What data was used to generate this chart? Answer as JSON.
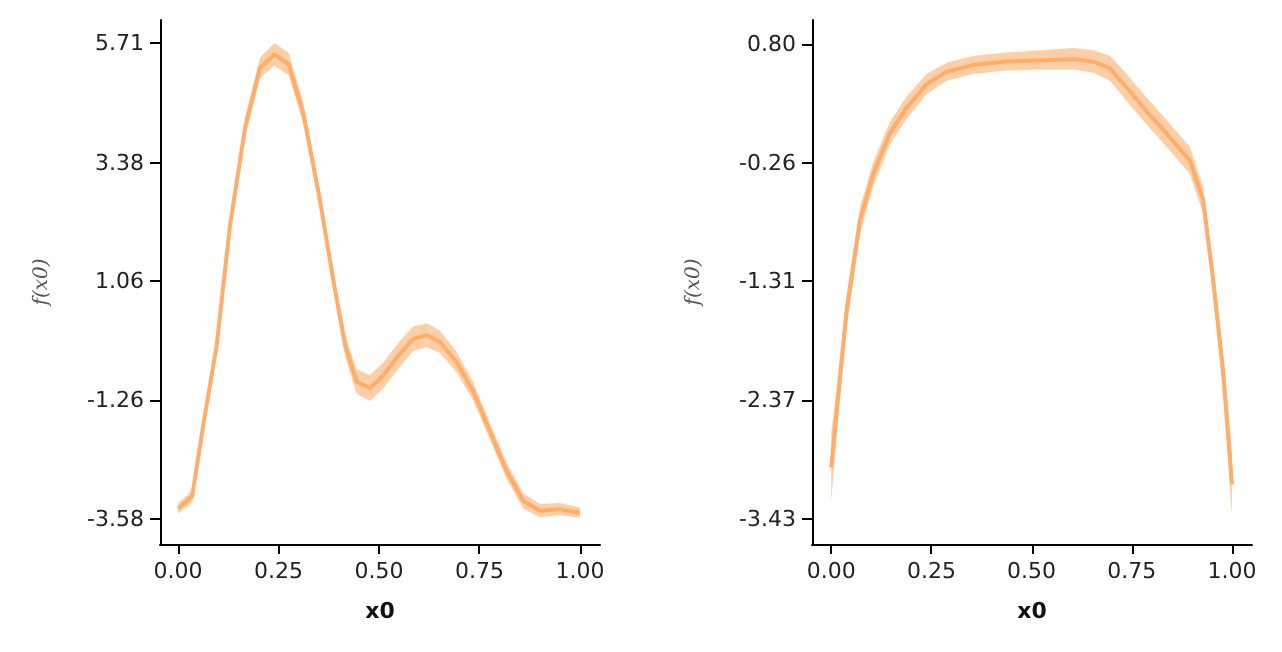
{
  "chart_data": [
    {
      "type": "line",
      "xlabel": "x0",
      "ylabel": "f(x0)",
      "x": [
        0,
        0.035,
        0.063,
        0.096,
        0.129,
        0.167,
        0.204,
        0.24,
        0.275,
        0.312,
        0.353,
        0.386,
        0.416,
        0.444,
        0.478,
        0.511,
        0.549,
        0.585,
        0.619,
        0.652,
        0.693,
        0.735,
        0.776,
        0.818,
        0.859,
        0.9,
        0.95,
        1.0
      ],
      "series": [
        {
          "color": "#fdae6b",
          "values": [
            -3.37,
            -3.13,
            -1.73,
            -0.19,
            2.14,
            4.07,
            5.23,
            5.49,
            5.3,
            4.33,
            2.65,
            1.1,
            -0.19,
            -0.89,
            -1.02,
            -0.77,
            -0.38,
            -0.06,
            0.01,
            -0.12,
            -0.51,
            -1.09,
            -1.86,
            -2.64,
            -3.22,
            -3.41,
            -3.38,
            -3.45
          ],
          "lower": [
            -3.47,
            -3.25,
            -1.85,
            -0.33,
            1.98,
            3.87,
            5.03,
            5.27,
            5.08,
            4.13,
            2.47,
            0.92,
            -0.4,
            -1.13,
            -1.27,
            -1.02,
            -0.63,
            -0.3,
            -0.22,
            -0.34,
            -0.71,
            -1.27,
            -2.02,
            -2.8,
            -3.37,
            -3.54,
            -3.5,
            -3.55
          ],
          "upper": [
            -3.27,
            -3.01,
            -1.61,
            -0.05,
            2.3,
            4.27,
            5.43,
            5.71,
            5.52,
            4.53,
            2.83,
            1.28,
            0.02,
            -0.65,
            -0.77,
            -0.52,
            -0.13,
            0.18,
            0.24,
            0.1,
            -0.31,
            -0.91,
            -1.7,
            -2.48,
            -3.07,
            -3.28,
            -3.26,
            -3.35
          ]
        }
      ],
      "xlim": [
        -0.045,
        1.05
      ],
      "ylim": [
        -4.06,
        6.16
      ],
      "xticks": [
        {
          "value": 0,
          "label": "0.00"
        },
        {
          "value": 0.25,
          "label": "0.25"
        },
        {
          "value": 0.5,
          "label": "0.50"
        },
        {
          "value": 0.75,
          "label": "0.75"
        },
        {
          "value": 1,
          "label": "1.00"
        }
      ],
      "yticks": [
        -3.58,
        -1.26,
        1.06,
        3.38,
        5.71
      ],
      "grid": false,
      "marker": "none"
    },
    {
      "type": "line",
      "xlabel": "x0",
      "ylabel": "f(x0)",
      "x": [
        0,
        0.017,
        0.038,
        0.072,
        0.105,
        0.146,
        0.188,
        0.238,
        0.288,
        0.354,
        0.438,
        0.521,
        0.604,
        0.654,
        0.696,
        0.737,
        0.787,
        0.837,
        0.895,
        0.928,
        0.953,
        0.978,
        1.0
      ],
      "series": [
        {
          "color": "#fdae6b",
          "values": [
            -2.97,
            -2.35,
            -1.59,
            -0.77,
            -0.36,
            0.0,
            0.23,
            0.44,
            0.55,
            0.61,
            0.64,
            0.65,
            0.66,
            0.64,
            0.58,
            0.41,
            0.2,
            0.0,
            -0.24,
            -0.59,
            -1.3,
            -2.12,
            -3.12
          ],
          "lower": [
            -3.27,
            -2.55,
            -1.74,
            -0.89,
            -0.47,
            -0.1,
            0.13,
            0.35,
            0.47,
            0.53,
            0.56,
            0.57,
            0.57,
            0.54,
            0.47,
            0.29,
            0.08,
            -0.12,
            -0.36,
            -0.71,
            -1.43,
            -2.3,
            -3.4
          ],
          "upper": [
            -2.67,
            -2.15,
            -1.44,
            -0.65,
            -0.25,
            0.1,
            0.33,
            0.53,
            0.63,
            0.69,
            0.72,
            0.74,
            0.76,
            0.74,
            0.69,
            0.53,
            0.32,
            0.12,
            -0.12,
            -0.47,
            -1.17,
            -1.94,
            -2.84
          ]
        }
      ],
      "xlim": [
        -0.048,
        1.05
      ],
      "ylim": [
        -3.65,
        1.01
      ],
      "xticks": [
        {
          "value": 0,
          "label": "0.00"
        },
        {
          "value": 0.25,
          "label": "0.25"
        },
        {
          "value": 0.5,
          "label": "0.50"
        },
        {
          "value": 0.75,
          "label": "0.75"
        },
        {
          "value": 1,
          "label": "1.00"
        }
      ],
      "yticks": [
        -3.43,
        -2.37,
        -1.31,
        -0.26,
        {
          "value": 0.8,
          "label": "0.80"
        }
      ],
      "grid": false,
      "marker": "none"
    }
  ]
}
